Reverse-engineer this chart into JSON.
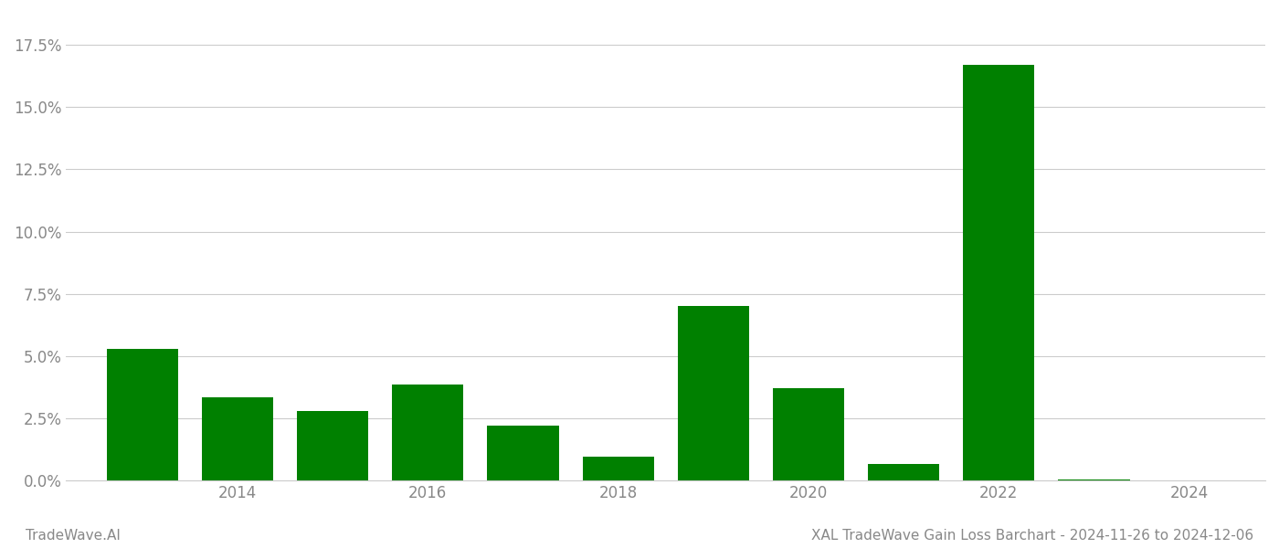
{
  "years": [
    2013,
    2014,
    2015,
    2016,
    2017,
    2018,
    2019,
    2020,
    2021,
    2022,
    2023
  ],
  "values": [
    0.053,
    0.0335,
    0.028,
    0.0385,
    0.022,
    0.0095,
    0.07,
    0.037,
    0.0065,
    0.167,
    0.0005
  ],
  "bar_color": "#008000",
  "background_color": "#ffffff",
  "grid_color": "#cccccc",
  "axis_label_color": "#888888",
  "ylabel_color": "#888888",
  "footer_left": "TradeWave.AI",
  "footer_right": "XAL TradeWave Gain Loss Barchart - 2024-11-26 to 2024-12-06",
  "ylim": [
    0,
    0.1875
  ],
  "yticks": [
    0.0,
    0.025,
    0.05,
    0.075,
    0.1,
    0.125,
    0.15,
    0.175
  ],
  "xtick_labels": [
    "2014",
    "2016",
    "2018",
    "2020",
    "2022",
    "2024"
  ],
  "xtick_positions": [
    2014,
    2016,
    2018,
    2020,
    2022,
    2024
  ],
  "xlim": [
    2012.2,
    2024.8
  ],
  "bar_width": 0.75,
  "figsize": [
    14.0,
    6.0
  ],
  "dpi": 100
}
